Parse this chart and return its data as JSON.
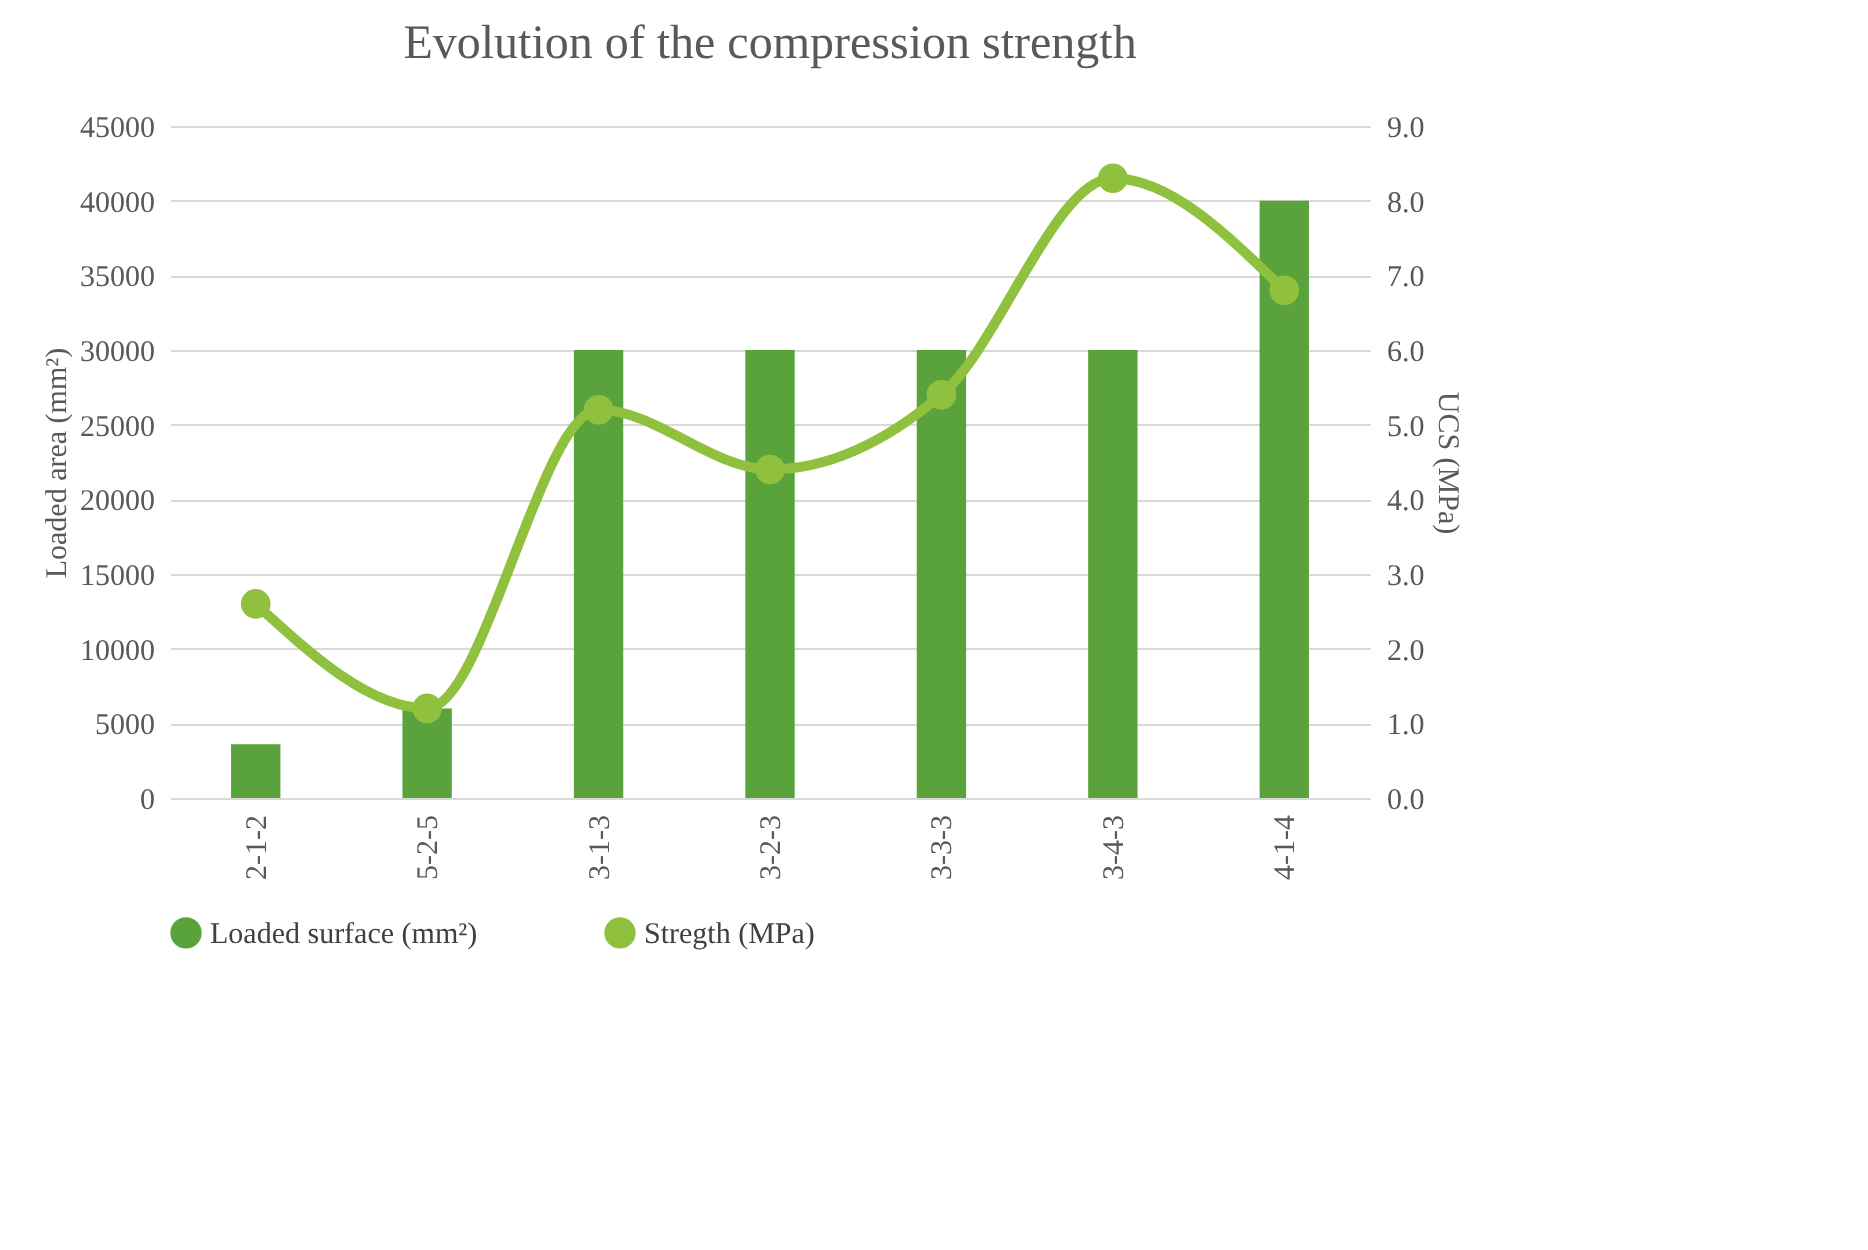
{
  "chart_data": {
    "type": "bar",
    "title": "Evolution of the compression strength",
    "xlabel": null,
    "ylabel": "Loaded area (mm²)",
    "y2label": "UCS (MPa)",
    "categories": [
      "2-1-2",
      "5-2-5",
      "3-1-3",
      "3-2-3",
      "3-3-3",
      "3-4-3",
      "4-1-4"
    ],
    "series": [
      {
        "name": "Loaded surface (mm²)",
        "color": "#5aa33c",
        "values": [
          3600,
          6000,
          30000,
          30000,
          30000,
          30000,
          40000
        ]
      },
      {
        "name": "Stregth (MPa)",
        "type": "line",
        "axis": "y2",
        "color": "#8fc13f",
        "marker": "circle",
        "values": [
          2.6,
          1.2,
          5.2,
          4.4,
          5.4,
          8.3,
          6.8
        ]
      }
    ],
    "ylim": [
      0,
      45000
    ],
    "yticks": [
      0,
      5000,
      10000,
      15000,
      20000,
      25000,
      30000,
      35000,
      40000,
      45000
    ],
    "y2lim": [
      0,
      9
    ],
    "y2ticks": [
      {
        "value": 0,
        "label": "0.0"
      },
      {
        "value": 1,
        "label": "1.0"
      },
      {
        "value": 2,
        "label": "2.0"
      },
      {
        "value": 3,
        "label": "3.0"
      },
      {
        "value": 4,
        "label": "4.0"
      },
      {
        "value": 5,
        "label": "5.0"
      },
      {
        "value": 6,
        "label": "6.0"
      },
      {
        "value": 7,
        "label": "7.0"
      },
      {
        "value": 8,
        "label": "8.0"
      },
      {
        "value": 9,
        "label": "9.0"
      }
    ],
    "grid": "y",
    "legend": "bottom"
  }
}
